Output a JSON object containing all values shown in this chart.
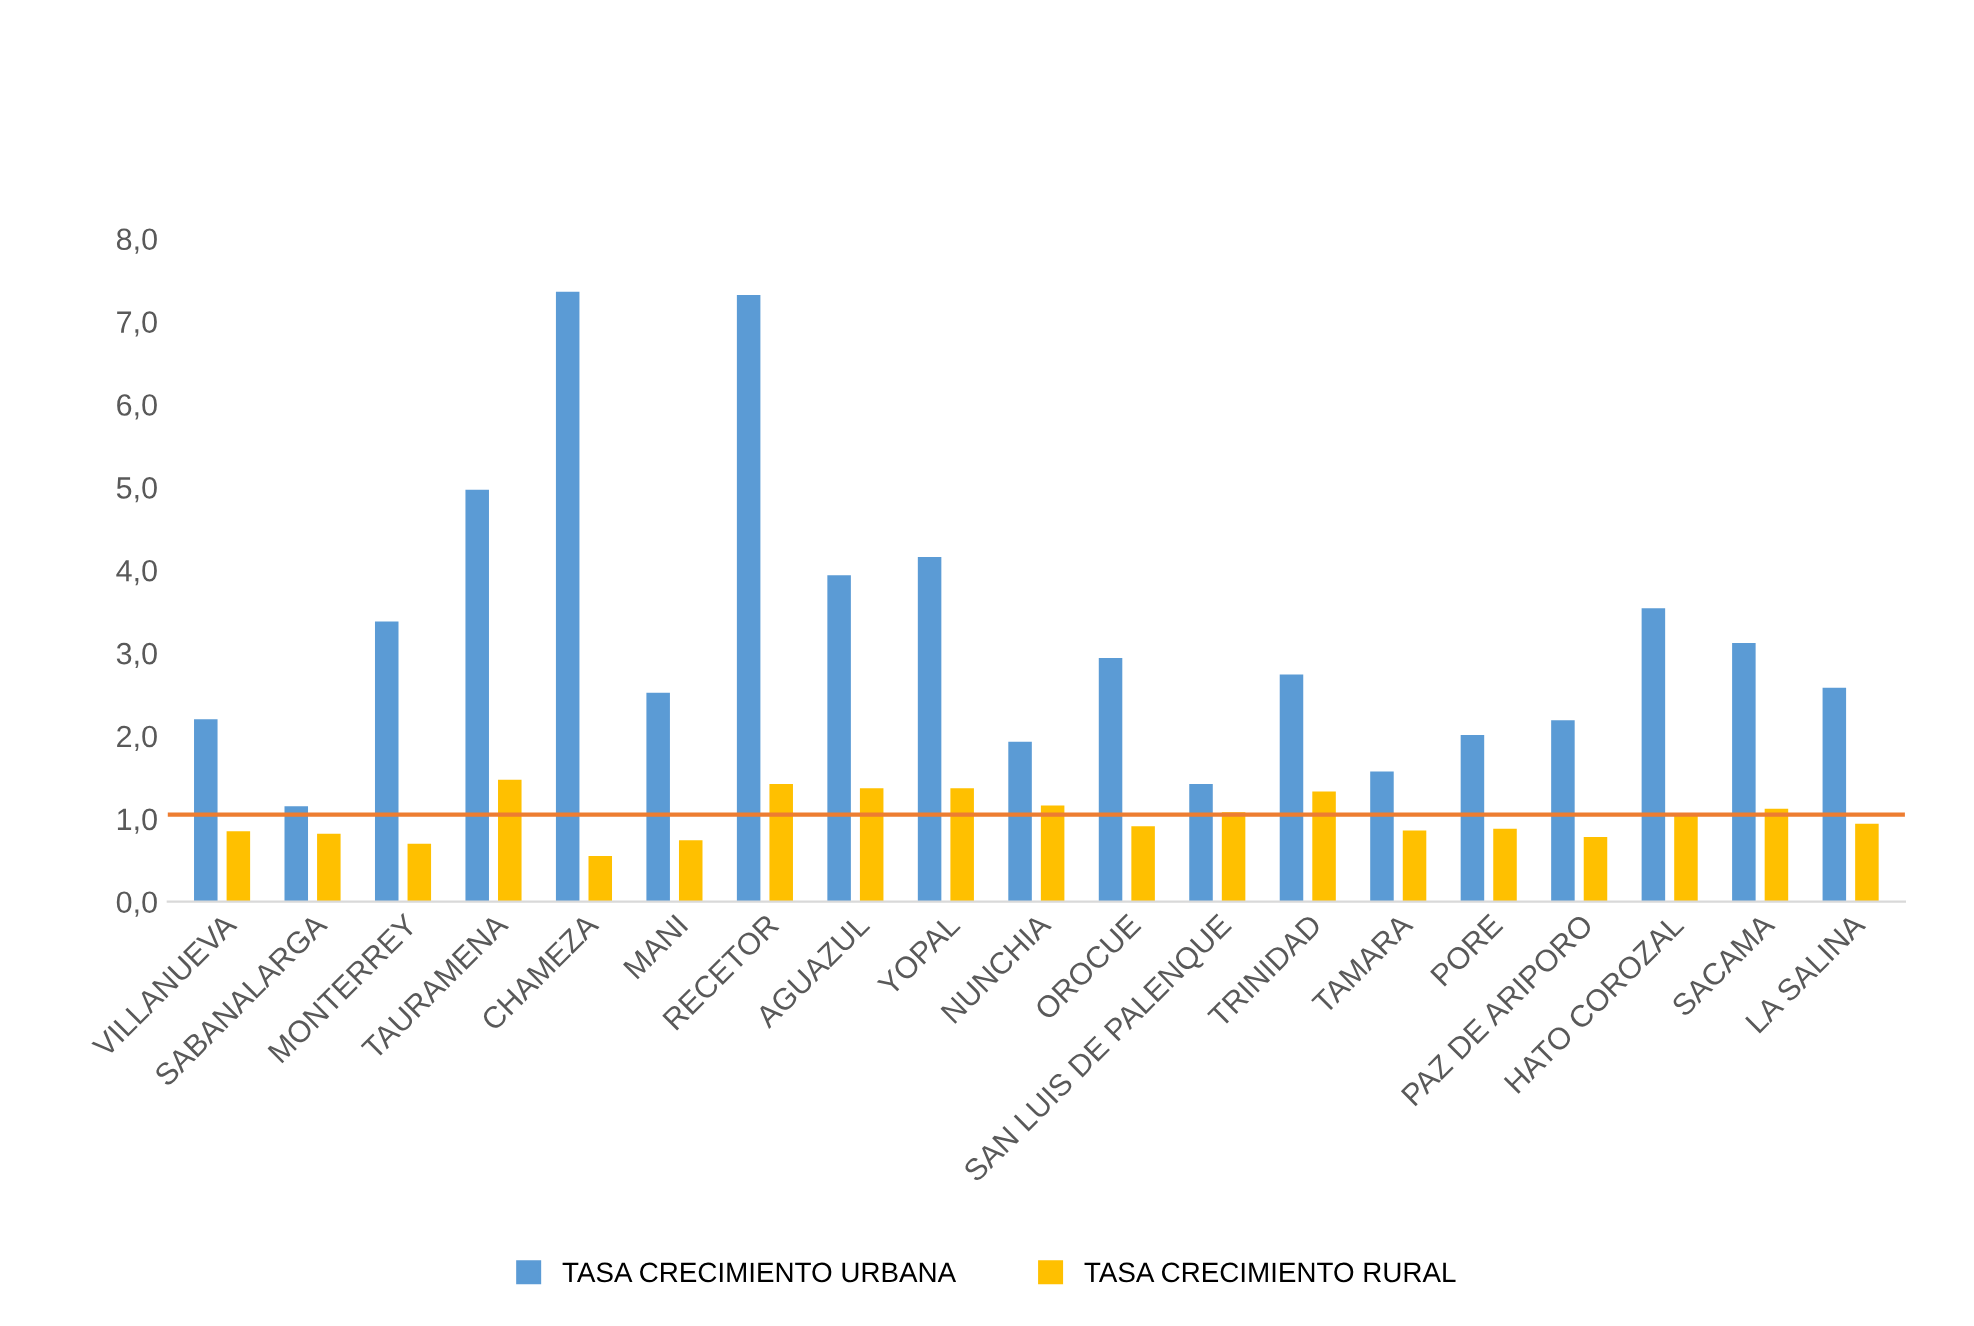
{
  "chart_data": {
    "type": "bar",
    "categories": [
      "VILLANUEVA",
      "SABANALARGA",
      "MONTERREY",
      "TAURAMENA",
      "CHAMEZA",
      "MANI",
      "RECETOR",
      "AGUAZUL",
      "YOPAL",
      "NUNCHIA",
      "OROCUE",
      "SAN LUIS DE PALENQUE",
      "TRINIDAD",
      "TAMARA",
      "PORE",
      "PAZ DE ARIPORO",
      "HATO COROZAL",
      "SACAMA",
      "LA SALINA"
    ],
    "series": [
      {
        "name": "TASA CRECIMIENTO URBANA",
        "color": "#5b9bd5",
        "values": [
          2.2,
          1.15,
          3.38,
          4.97,
          7.36,
          2.52,
          7.32,
          3.94,
          4.16,
          1.93,
          2.94,
          1.42,
          2.74,
          1.57,
          2.01,
          2.19,
          3.54,
          3.12,
          2.58
        ]
      },
      {
        "name": "TASA CRECIMIENTO RURAL",
        "color": "#ffc000",
        "values": [
          0.85,
          0.82,
          0.7,
          1.47,
          0.55,
          0.74,
          1.42,
          1.37,
          1.37,
          1.16,
          0.91,
          1.08,
          1.33,
          0.86,
          0.88,
          0.78,
          1.07,
          1.12,
          0.94
        ]
      }
    ],
    "ylim": [
      0,
      8
    ],
    "yticks": [
      {
        "value": 0,
        "label": "0,0"
      },
      {
        "value": 1,
        "label": "1,0"
      },
      {
        "value": 2,
        "label": "2,0"
      },
      {
        "value": 3,
        "label": "3,0"
      },
      {
        "value": 4,
        "label": "4,0"
      },
      {
        "value": 5,
        "label": "5,0"
      },
      {
        "value": 6,
        "label": "6,0"
      },
      {
        "value": 7,
        "label": "7,0"
      },
      {
        "value": 8,
        "label": "8,0"
      }
    ],
    "ref_lines": [
      {
        "axis": "y",
        "value": 1.05,
        "color": "#ed7d31"
      }
    ],
    "grid": false,
    "legend": "bottom"
  }
}
